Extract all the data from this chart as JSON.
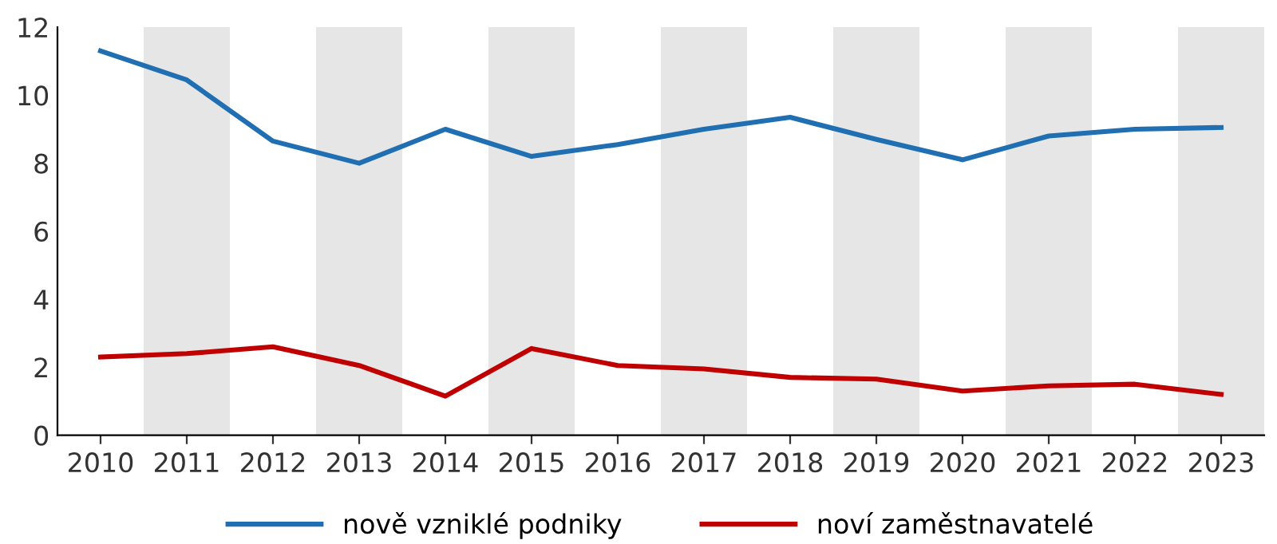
{
  "chart_data": {
    "type": "line",
    "categories": [
      "2010",
      "2011",
      "2012",
      "2013",
      "2014",
      "2015",
      "2016",
      "2017",
      "2018",
      "2019",
      "2020",
      "2021",
      "2022",
      "2023"
    ],
    "series": [
      {
        "name": "nově vzniklé podniky",
        "color": "#1f6fb2",
        "values": [
          11.3,
          10.45,
          8.65,
          8.0,
          9.0,
          8.2,
          8.55,
          9.0,
          9.35,
          8.7,
          8.1,
          8.8,
          9.0,
          9.05
        ]
      },
      {
        "name": "noví zaměstnavatelé",
        "color": "#c00000",
        "values": [
          2.3,
          2.4,
          2.6,
          2.05,
          1.15,
          2.55,
          2.05,
          1.95,
          1.7,
          1.65,
          1.3,
          1.45,
          1.5,
          1.2
        ]
      }
    ],
    "ylim": [
      0,
      12
    ],
    "yticks": [
      0,
      2,
      4,
      6,
      8,
      10,
      12
    ],
    "bands": [
      {
        "axis": "x",
        "from": "2011",
        "to": "2011",
        "color": "#e6e6e6"
      },
      {
        "axis": "x",
        "from": "2013",
        "to": "2013",
        "color": "#e6e6e6"
      },
      {
        "axis": "x",
        "from": "2015",
        "to": "2015",
        "color": "#e6e6e6"
      },
      {
        "axis": "x",
        "from": "2017",
        "to": "2017",
        "color": "#e6e6e6"
      },
      {
        "axis": "x",
        "from": "2019",
        "to": "2019",
        "color": "#e6e6e6"
      },
      {
        "axis": "x",
        "from": "2021",
        "to": "2021",
        "color": "#e6e6e6"
      },
      {
        "axis": "x",
        "from": "2023",
        "to": "2023",
        "color": "#e6e6e6"
      }
    ],
    "grid": false,
    "legend": "bottom",
    "marker": "none",
    "line_style": "solid"
  }
}
